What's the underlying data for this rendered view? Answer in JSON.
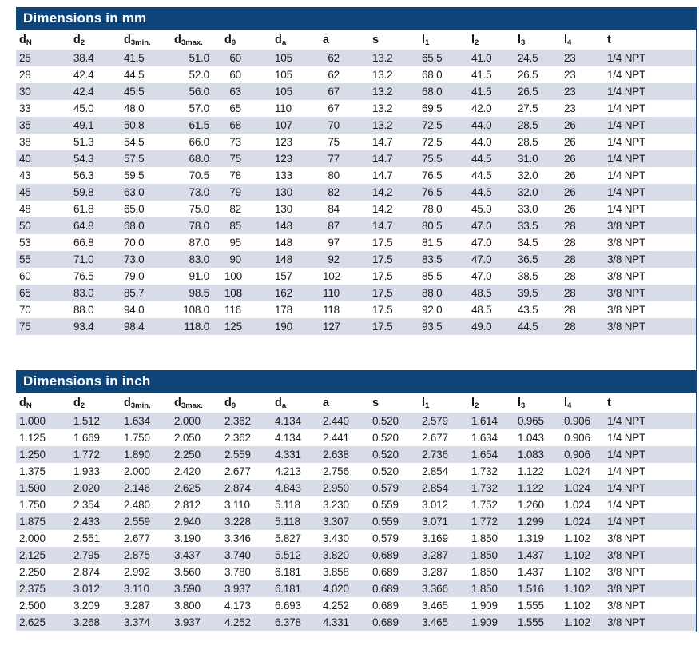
{
  "colors": {
    "title_bar_bg": "#0e4478",
    "title_bar_text": "#ffffff",
    "row_stripe": "#d8dbe8",
    "edge_rule": "#164a7c"
  },
  "tables": [
    {
      "id": "mm",
      "title": "Dimensions in mm",
      "columns": [
        {
          "base": "d",
          "sub": "N"
        },
        {
          "base": "d",
          "sub": "2"
        },
        {
          "base": "d",
          "sub": "3min."
        },
        {
          "base": "d",
          "sub": "3max."
        },
        {
          "base": "d",
          "sub": "9"
        },
        {
          "base": "d",
          "sub": "a"
        },
        {
          "base": "a",
          "sub": ""
        },
        {
          "base": "s",
          "sub": ""
        },
        {
          "base": "l",
          "sub": "1"
        },
        {
          "base": "l",
          "sub": "2"
        },
        {
          "base": "l",
          "sub": "3"
        },
        {
          "base": "l",
          "sub": "4"
        },
        {
          "base": "t",
          "sub": ""
        }
      ],
      "rows": [
        [
          "25",
          "38.4",
          "41.5",
          "51.0",
          "60",
          "105",
          "62",
          "13.2",
          "65.5",
          "41.0",
          "24.5",
          "23",
          "1/4 NPT"
        ],
        [
          "28",
          "42.4",
          "44.5",
          "52.0",
          "60",
          "105",
          "62",
          "13.2",
          "68.0",
          "41.5",
          "26.5",
          "23",
          "1/4 NPT"
        ],
        [
          "30",
          "42.4",
          "45.5",
          "56.0",
          "63",
          "105",
          "67",
          "13.2",
          "68.0",
          "41.5",
          "26.5",
          "23",
          "1/4 NPT"
        ],
        [
          "33",
          "45.0",
          "48.0",
          "57.0",
          "65",
          "110",
          "67",
          "13.2",
          "69.5",
          "42.0",
          "27.5",
          "23",
          "1/4 NPT"
        ],
        [
          "35",
          "49.1",
          "50.8",
          "61.5",
          "68",
          "107",
          "70",
          "13.2",
          "72.5",
          "44.0",
          "28.5",
          "26",
          "1/4 NPT"
        ],
        [
          "38",
          "51.3",
          "54.5",
          "66.0",
          "73",
          "123",
          "75",
          "14.7",
          "72.5",
          "44.0",
          "28.5",
          "26",
          "1/4 NPT"
        ],
        [
          "40",
          "54.3",
          "57.5",
          "68.0",
          "75",
          "123",
          "77",
          "14.7",
          "75.5",
          "44.5",
          "31.0",
          "26",
          "1/4 NPT"
        ],
        [
          "43",
          "56.3",
          "59.5",
          "70.5",
          "78",
          "133",
          "80",
          "14.7",
          "76.5",
          "44.5",
          "32.0",
          "26",
          "1/4 NPT"
        ],
        [
          "45",
          "59.8",
          "63.0",
          "73.0",
          "79",
          "130",
          "82",
          "14.2",
          "76.5",
          "44.5",
          "32.0",
          "26",
          "1/4 NPT"
        ],
        [
          "48",
          "61.8",
          "65.0",
          "75.0",
          "82",
          "130",
          "84",
          "14.2",
          "78.0",
          "45.0",
          "33.0",
          "26",
          "1/4 NPT"
        ],
        [
          "50",
          "64.8",
          "68.0",
          "78.0",
          "85",
          "148",
          "87",
          "14.7",
          "80.5",
          "47.0",
          "33.5",
          "28",
          "3/8 NPT"
        ],
        [
          "53",
          "66.8",
          "70.0",
          "87.0",
          "95",
          "148",
          "97",
          "17.5",
          "81.5",
          "47.0",
          "34.5",
          "28",
          "3/8 NPT"
        ],
        [
          "55",
          "71.0",
          "73.0",
          "83.0",
          "90",
          "148",
          "92",
          "17.5",
          "83.5",
          "47.0",
          "36.5",
          "28",
          "3/8 NPT"
        ],
        [
          "60",
          "76.5",
          "79.0",
          "91.0",
          "100",
          "157",
          "102",
          "17.5",
          "85.5",
          "47.0",
          "38.5",
          "28",
          "3/8 NPT"
        ],
        [
          "65",
          "83.0",
          "85.7",
          "98.5",
          "108",
          "162",
          "110",
          "17.5",
          "88.0",
          "48.5",
          "39.5",
          "28",
          "3/8 NPT"
        ],
        [
          "70",
          "88.0",
          "94.0",
          "108.0",
          "116",
          "178",
          "118",
          "17.5",
          "92.0",
          "48.5",
          "43.5",
          "28",
          "3/8 NPT"
        ],
        [
          "75",
          "93.4",
          "98.4",
          "118.0",
          "125",
          "190",
          "127",
          "17.5",
          "93.5",
          "49.0",
          "44.5",
          "28",
          "3/8 NPT"
        ]
      ]
    },
    {
      "id": "inch",
      "title": "Dimensions in inch",
      "columns": [
        {
          "base": "d",
          "sub": "N"
        },
        {
          "base": "d",
          "sub": "2"
        },
        {
          "base": "d",
          "sub": "3min."
        },
        {
          "base": "d",
          "sub": "3max."
        },
        {
          "base": "d",
          "sub": "9"
        },
        {
          "base": "d",
          "sub": "a"
        },
        {
          "base": "a",
          "sub": ""
        },
        {
          "base": "s",
          "sub": ""
        },
        {
          "base": "l",
          "sub": "1"
        },
        {
          "base": "l",
          "sub": "2"
        },
        {
          "base": "l",
          "sub": "3"
        },
        {
          "base": "l",
          "sub": "4"
        },
        {
          "base": "t",
          "sub": ""
        }
      ],
      "rows": [
        [
          "1.000",
          "1.512",
          "1.634",
          "2.000",
          "2.362",
          "4.134",
          "2.440",
          "0.520",
          "2.579",
          "1.614",
          "0.965",
          "0.906",
          "1/4 NPT"
        ],
        [
          "1.125",
          "1.669",
          "1.750",
          "2.050",
          "2.362",
          "4.134",
          "2.441",
          "0.520",
          "2.677",
          "1.634",
          "1.043",
          "0.906",
          "1/4 NPT"
        ],
        [
          "1.250",
          "1.772",
          "1.890",
          "2.250",
          "2.559",
          "4.331",
          "2.638",
          "0.520",
          "2.736",
          "1.654",
          "1.083",
          "0.906",
          "1/4 NPT"
        ],
        [
          "1.375",
          "1.933",
          "2.000",
          "2.420",
          "2.677",
          "4.213",
          "2.756",
          "0.520",
          "2.854",
          "1.732",
          "1.122",
          "1.024",
          "1/4 NPT"
        ],
        [
          "1.500",
          "2.020",
          "2.146",
          "2.625",
          "2.874",
          "4.843",
          "2.950",
          "0.579",
          "2.854",
          "1.732",
          "1.122",
          "1.024",
          "1/4 NPT"
        ],
        [
          "1.750",
          "2.354",
          "2.480",
          "2.812",
          "3.110",
          "5.118",
          "3.230",
          "0.559",
          "3.012",
          "1.752",
          "1.260",
          "1.024",
          "1/4 NPT"
        ],
        [
          "1.875",
          "2.433",
          "2.559",
          "2.940",
          "3.228",
          "5.118",
          "3.307",
          "0.559",
          "3.071",
          "1.772",
          "1.299",
          "1.024",
          "1/4 NPT"
        ],
        [
          "2.000",
          "2.551",
          "2.677",
          "3.190",
          "3.346",
          "5.827",
          "3.430",
          "0.579",
          "3.169",
          "1.850",
          "1.319",
          "1.102",
          "3/8 NPT"
        ],
        [
          "2.125",
          "2.795",
          "2.875",
          "3.437",
          "3.740",
          "5.512",
          "3.820",
          "0.689",
          "3.287",
          "1.850",
          "1.437",
          "1.102",
          "3/8 NPT"
        ],
        [
          "2.250",
          "2.874",
          "2.992",
          "3.560",
          "3.780",
          "6.181",
          "3.858",
          "0.689",
          "3.287",
          "1.850",
          "1.437",
          "1.102",
          "3/8 NPT"
        ],
        [
          "2.375",
          "3.012",
          "3.110",
          "3.590",
          "3.937",
          "6.181",
          "4.020",
          "0.689",
          "3.366",
          "1.850",
          "1.516",
          "1.102",
          "3/8 NPT"
        ],
        [
          "2.500",
          "3.209",
          "3.287",
          "3.800",
          "4.173",
          "6.693",
          "4.252",
          "0.689",
          "3.465",
          "1.909",
          "1.555",
          "1.102",
          "3/8 NPT"
        ],
        [
          "2.625",
          "3.268",
          "3.374",
          "3.937",
          "4.252",
          "6.378",
          "4.331",
          "0.689",
          "3.465",
          "1.909",
          "1.555",
          "1.102",
          "3/8 NPT"
        ]
      ]
    }
  ]
}
